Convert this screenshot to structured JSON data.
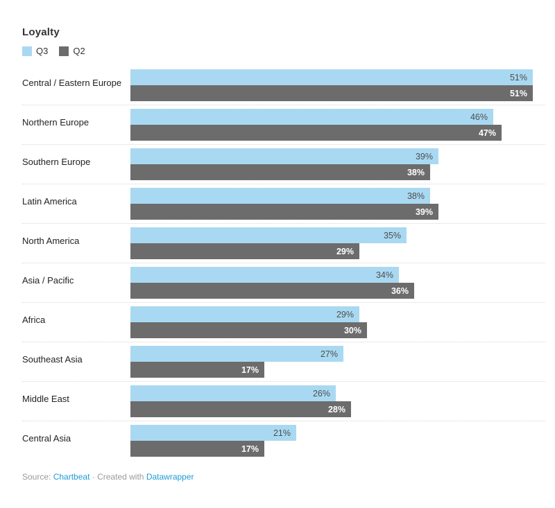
{
  "title": "Loyalty",
  "legend": {
    "items": [
      {
        "label": "Q3",
        "color": "#a9d9f2"
      },
      {
        "label": "Q2",
        "color": "#6c6c6c"
      }
    ]
  },
  "footer": {
    "source_label": "Source:",
    "source_link": "Chartbeat",
    "separator": "·",
    "created_label": "Created with",
    "tool_link": "Datawrapper",
    "link_color": "#1d9bd7"
  },
  "chart_data": {
    "type": "bar",
    "orientation": "horizontal",
    "title": "Loyalty",
    "categories": [
      "Central / Eastern Europe",
      "Northern Europe",
      "Southern Europe",
      "Latin America",
      "North America",
      "Asia / Pacific",
      "Africa",
      "Southeast Asia",
      "Middle East",
      "Central Asia"
    ],
    "series": [
      {
        "name": "Q3",
        "color": "#a9d9f2",
        "label_color": "#4d4d4d",
        "values": [
          51,
          46,
          39,
          38,
          35,
          34,
          29,
          27,
          26,
          21
        ]
      },
      {
        "name": "Q2",
        "color": "#6c6c6c",
        "label_color": "#ffffff",
        "values": [
          51,
          47,
          38,
          39,
          29,
          36,
          30,
          17,
          28,
          17
        ]
      }
    ],
    "value_suffix": "%",
    "xlim": [
      0,
      51
    ],
    "grid": false,
    "legend_position": "top-left"
  }
}
